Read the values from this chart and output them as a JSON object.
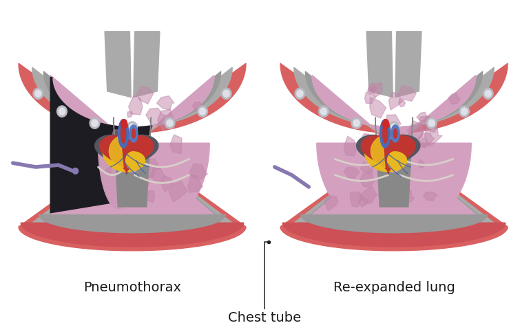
{
  "bg_color": "#ffffff",
  "label_pneumothorax": "Pneumothorax",
  "label_reexpanded": "Re-expanded lung",
  "label_chesttube": "Chest tube",
  "label_fontsize": 14,
  "chest_tube_label_fontsize": 14,
  "text_color": "#1a1a1a",
  "colors": {
    "skin_red": "#d96060",
    "skin_red2": "#cc5555",
    "gray_outer": "#aaaaaa",
    "gray_mid": "#888888",
    "gray_inner": "#999999",
    "gray_light": "#c8c8cc",
    "gray_inner_wall": "#b0b0b5",
    "pericardium_dark": "#555560",
    "lung_pink": "#d4a0c0",
    "lung_pink_dark": "#c090b0",
    "lung_texture": "#c085a8",
    "pneumothorax_black": "#1c1c22",
    "diaphragm_red": "#cc5055",
    "diaphragm_light": "#e07070",
    "heart_main": "#c03530",
    "heart_dark": "#a02828",
    "heart_light": "#d04540",
    "aorta_top_red": "#cc2828",
    "aorta_blue": "#4a6ab5",
    "aorta_blue2": "#3a5aa5",
    "pulm_blue": "#5878c0",
    "heart_yellow": "#e8b820",
    "heart_orange": "#d09010",
    "coronary_blue": "#4060a0",
    "nerve_color": "#d8d0c8",
    "rib_btn_gray": "#b8b8c0",
    "rib_btn_white": "#e0e0e8",
    "chest_tube_color": "#8878b0",
    "spine_top": "#aaaaaa",
    "mediastinum": "#909098"
  }
}
